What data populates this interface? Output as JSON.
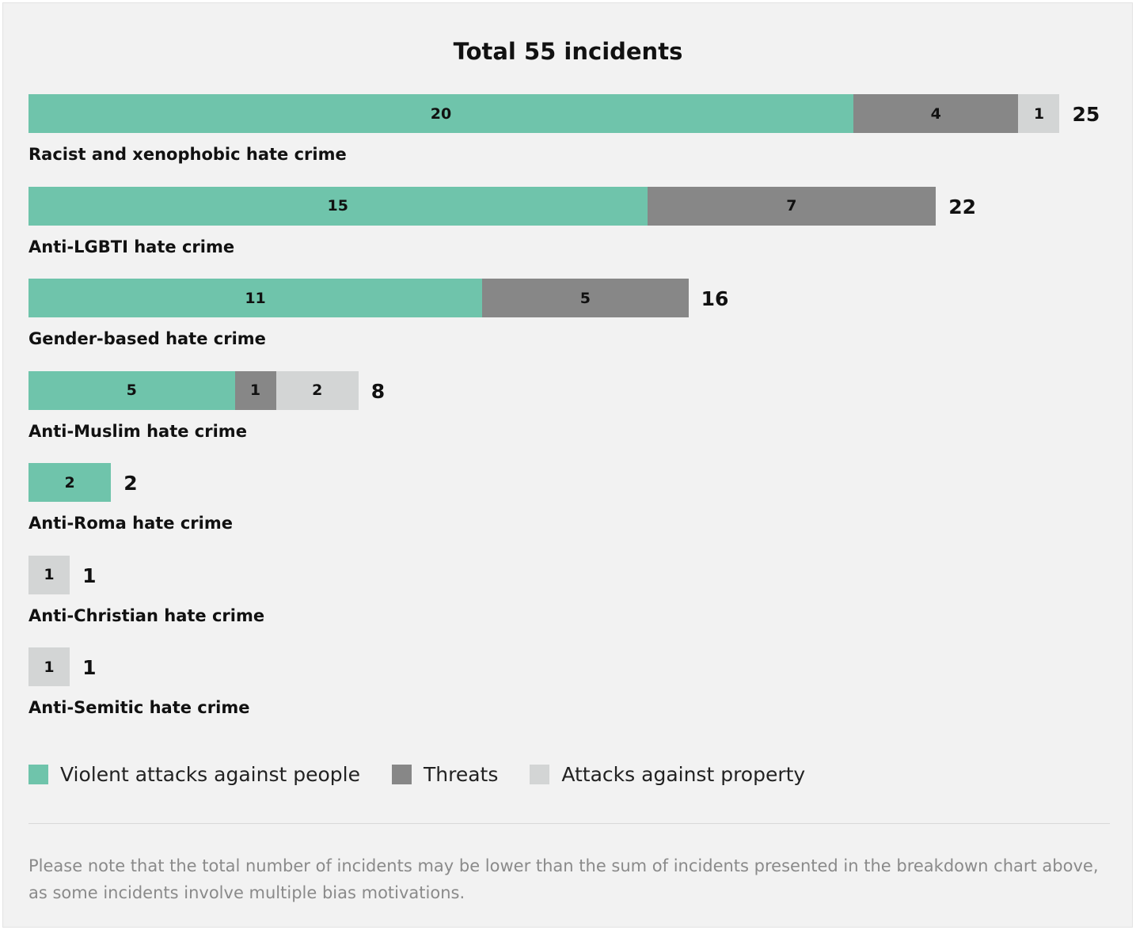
{
  "colors": {
    "violent": "#6fc4ab",
    "threats": "#878787",
    "property": "#d3d5d5",
    "background": "#f2f2f2"
  },
  "chart_data": {
    "type": "bar",
    "orientation": "horizontal",
    "stacked": true,
    "title": "Total 55 incidents",
    "categories": [
      "Racist and xenophobic hate crime",
      "Anti-LGBTI hate crime",
      "Gender-based hate crime",
      "Anti-Muslim hate crime",
      "Anti-Roma hate crime",
      "Anti-Christian hate crime",
      "Anti-Semitic hate crime"
    ],
    "series": [
      {
        "name": "Violent attacks against people",
        "values": [
          20,
          15,
          11,
          5,
          2,
          0,
          0
        ]
      },
      {
        "name": "Threats",
        "values": [
          4,
          7,
          5,
          1,
          0,
          0,
          0
        ]
      },
      {
        "name": "Attacks against property",
        "values": [
          1,
          0,
          0,
          2,
          0,
          1,
          1
        ]
      }
    ],
    "totals": [
      25,
      22,
      16,
      8,
      2,
      1,
      1
    ],
    "legend_position": "bottom-left",
    "grid": false,
    "xlim": [
      0,
      25
    ]
  },
  "note": "Please note that the total number of incidents may be lower than the sum of incidents presented in the breakdown chart above, as some incidents involve multiple bias motivations."
}
